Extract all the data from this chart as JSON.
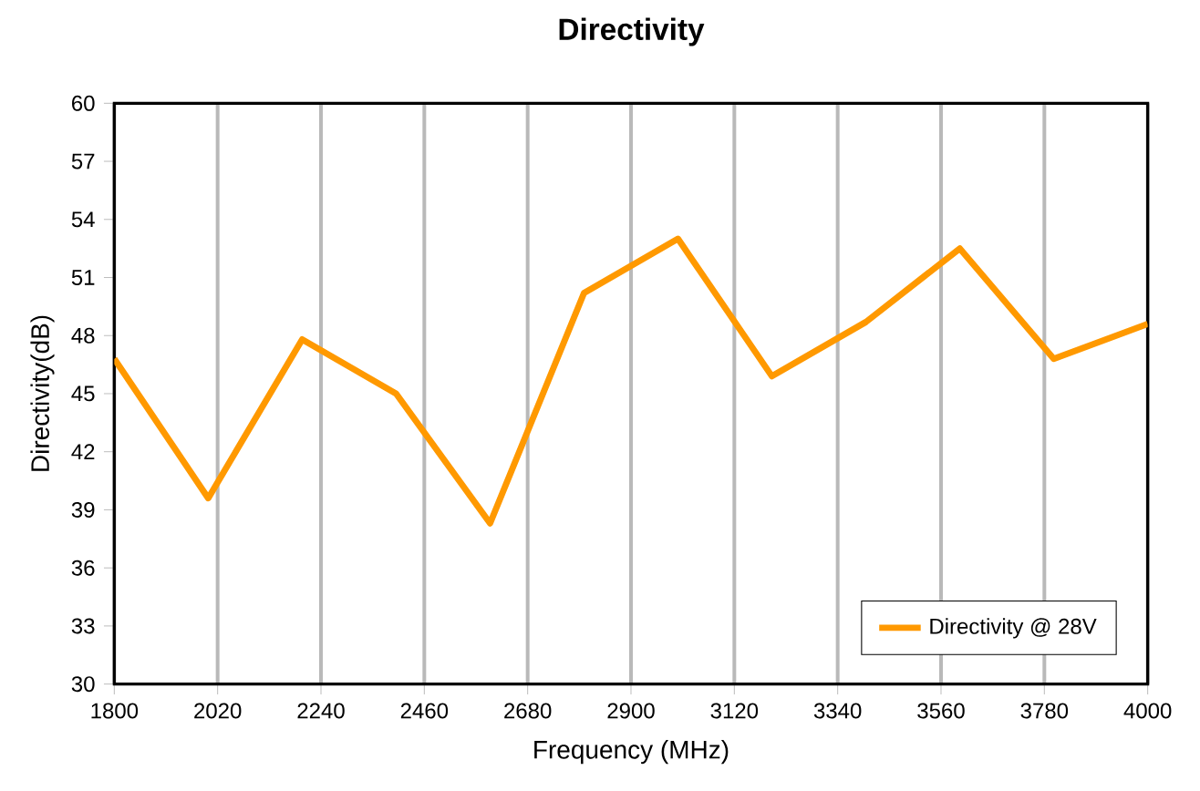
{
  "chart_data": {
    "type": "line",
    "title": "Directivity",
    "xlabel": "Frequency (MHz)",
    "ylabel": "Directivity(dB)",
    "x": [
      1800,
      2000,
      2200,
      2400,
      2600,
      2800,
      3000,
      3200,
      3400,
      3600,
      3800,
      4000
    ],
    "series": [
      {
        "name": "Directivity @ 28V",
        "color": "#ff9900",
        "values": [
          46.8,
          39.6,
          47.8,
          45.0,
          38.3,
          50.2,
          53.0,
          45.9,
          48.7,
          52.5,
          46.8,
          48.6
        ]
      }
    ],
    "xlim": [
      1800,
      4000
    ],
    "xticks": [
      1800,
      2020,
      2240,
      2460,
      2680,
      2900,
      3120,
      3340,
      3560,
      3780,
      4000
    ],
    "ylim": [
      30,
      60
    ],
    "yticks": [
      30,
      33,
      36,
      39,
      42,
      45,
      48,
      51,
      54,
      57,
      60
    ],
    "grid": "x",
    "legend": "bottom right",
    "marker": "none",
    "line_style": "solid"
  }
}
